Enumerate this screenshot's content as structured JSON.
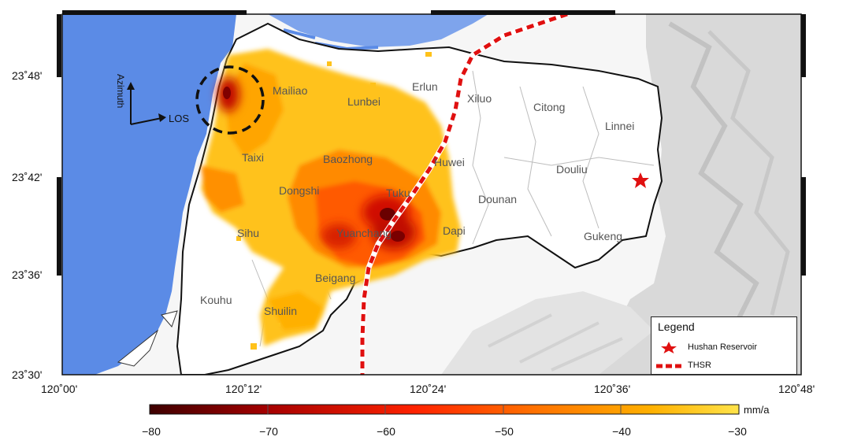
{
  "map": {
    "towns": [
      "Mailiao",
      "Erlun",
      "Lunbei",
      "Xiluo",
      "Citong",
      "Linnei",
      "Taixi",
      "Baozhong",
      "Huwei",
      "Douliu",
      "Dongshi",
      "Tuku",
      "Dounan",
      "Sihu",
      "Yuanchang",
      "Dapi",
      "Gukeng",
      "Beigang",
      "Kouhu",
      "Shuilin"
    ],
    "lon_ticks": [
      "120˚00'",
      "120˚12'",
      "120˚24'",
      "120˚36'",
      "120˚48'"
    ],
    "lat_ticks": [
      "23˚48'",
      "23˚42'",
      "23˚36'",
      "23˚30'"
    ],
    "radar_labels": {
      "azimuth": "Azimuth",
      "los": "LOS"
    },
    "colors": {
      "sea": "#5b8be6",
      "land": "#ffffff",
      "relief": "#e3e3e3",
      "thsr": "#e01010",
      "star": "#e01010"
    }
  },
  "legend": {
    "title": "Legend",
    "items": [
      {
        "icon": "star-icon",
        "label": "Hushan Reservoir"
      },
      {
        "icon": "dashed-line-icon",
        "label": "THSR"
      }
    ]
  },
  "colorbar": {
    "unit": "mm/a",
    "ticks": [
      "−80",
      "−70",
      "−60",
      "−50",
      "−40",
      "−30"
    ],
    "min": -80,
    "max": -30,
    "colors": [
      "#4a0000",
      "#b30000",
      "#ff2a00",
      "#ff7a00",
      "#ffb300",
      "#ffe000"
    ]
  }
}
